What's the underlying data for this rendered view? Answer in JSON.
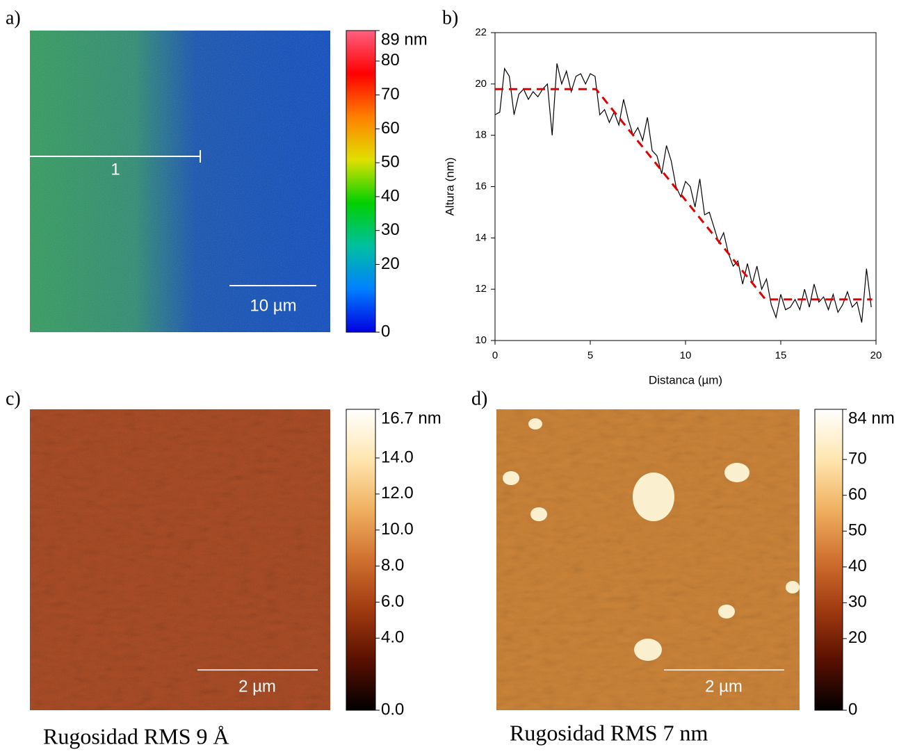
{
  "chart_data": [
    {
      "type": "image",
      "label": "a)",
      "clim": [
        0,
        89
      ],
      "colormap": [
        "#0000e0",
        "#0080ff",
        "#00c0a0",
        "#00d000",
        "#e0e000",
        "#ff8000",
        "#ff0000",
        "#ff6080"
      ],
      "cticks": [
        {
          "value": 89,
          "label": "89 nm"
        },
        80,
        70,
        60,
        50,
        40,
        30,
        20,
        0
      ],
      "scale_bar": "10 µm",
      "annotation": "1"
    },
    {
      "type": "line",
      "label": "b)",
      "xlabel": "Distanca (µm)",
      "ylabel": "Altura (nm)",
      "xlim": [
        0,
        20
      ],
      "ylim": [
        10,
        22
      ],
      "xticks": [
        0,
        5,
        10,
        15,
        20
      ],
      "yticks": [
        10,
        12,
        14,
        16,
        18,
        20,
        22
      ],
      "series": [
        {
          "color": "#000000",
          "dash": false,
          "x": [
            0,
            0.25,
            0.5,
            0.75,
            1,
            1.25,
            1.5,
            1.75,
            2,
            2.25,
            2.5,
            2.75,
            3,
            3.25,
            3.5,
            3.75,
            4,
            4.25,
            4.5,
            4.75,
            5,
            5.25,
            5.5,
            5.75,
            6,
            6.25,
            6.5,
            6.75,
            7,
            7.25,
            7.5,
            7.75,
            8,
            8.25,
            8.5,
            8.75,
            9,
            9.25,
            9.5,
            9.75,
            10,
            10.25,
            10.5,
            10.75,
            11,
            11.25,
            11.5,
            11.75,
            12,
            12.25,
            12.5,
            12.75,
            13,
            13.25,
            13.5,
            13.75,
            14,
            14.25,
            14.5,
            14.75,
            15,
            15.25,
            15.5,
            15.75,
            16,
            16.25,
            16.5,
            16.75,
            17,
            17.25,
            17.5,
            17.75,
            18,
            18.25,
            18.5,
            18.75,
            19,
            19.25,
            19.5,
            19.75
          ],
          "values": [
            18.8,
            18.9,
            20.6,
            20.3,
            18.8,
            19.6,
            19.8,
            19.4,
            19.7,
            19.5,
            19.8,
            20.0,
            18.0,
            20.8,
            20.0,
            20.5,
            19.7,
            20.3,
            20.4,
            20.0,
            20.4,
            20.3,
            18.8,
            19.0,
            18.5,
            18.9,
            18.4,
            19.4,
            18.6,
            18.0,
            18.3,
            17.8,
            18.7,
            17.4,
            17.2,
            16.5,
            17.6,
            17.0,
            16.0,
            15.6,
            16.2,
            16.0,
            15.2,
            16.3,
            14.9,
            15.0,
            14.4,
            13.8,
            14.2,
            13.4,
            12.9,
            13.1,
            12.2,
            13.0,
            12.2,
            12.9,
            12.0,
            12.4,
            11.4,
            10.9,
            11.8,
            11.2,
            11.3,
            11.6,
            11.2,
            12.0,
            11.3,
            12.2,
            11.5,
            11.7,
            11.2,
            11.8,
            11.1,
            11.4,
            11.9,
            11.3,
            11.5,
            10.7,
            12.8,
            11.3
          ]
        },
        {
          "color": "#e00000",
          "dash": true,
          "x": [
            0,
            5.3,
            14.2,
            19.8
          ],
          "values": [
            19.8,
            19.8,
            11.6,
            11.6
          ]
        }
      ]
    },
    {
      "type": "image",
      "label": "c)",
      "clim": [
        0,
        16.7
      ],
      "colormap": [
        "#000000",
        "#5a1000",
        "#a03a10",
        "#d07030",
        "#f0b060",
        "#ffe6b0",
        "#ffffff"
      ],
      "cticks": [
        {
          "value": 16.7,
          "label": "16.7 nm"
        },
        {
          "value": 14,
          "label": "14.0"
        },
        {
          "value": 12,
          "label": "12.0"
        },
        {
          "value": 10,
          "label": "10.0"
        },
        {
          "value": 8,
          "label": "8.0"
        },
        {
          "value": 6,
          "label": "6.0"
        },
        {
          "value": 4,
          "label": "4.0"
        },
        {
          "value": 0,
          "label": "0.0"
        }
      ],
      "scale_bar": "2 µm",
      "caption": "Rugosidad RMS 9 Å"
    },
    {
      "type": "image",
      "label": "d)",
      "clim": [
        0,
        84
      ],
      "colormap": [
        "#000000",
        "#5a1000",
        "#a03a10",
        "#d07030",
        "#f0b060",
        "#ffe6b0",
        "#ffffff"
      ],
      "cticks": [
        {
          "value": 84,
          "label": "84 nm"
        },
        70,
        60,
        50,
        40,
        30,
        20,
        0
      ],
      "scale_bar": "2 µm",
      "caption": "Rugosidad RMS 7 nm"
    }
  ]
}
